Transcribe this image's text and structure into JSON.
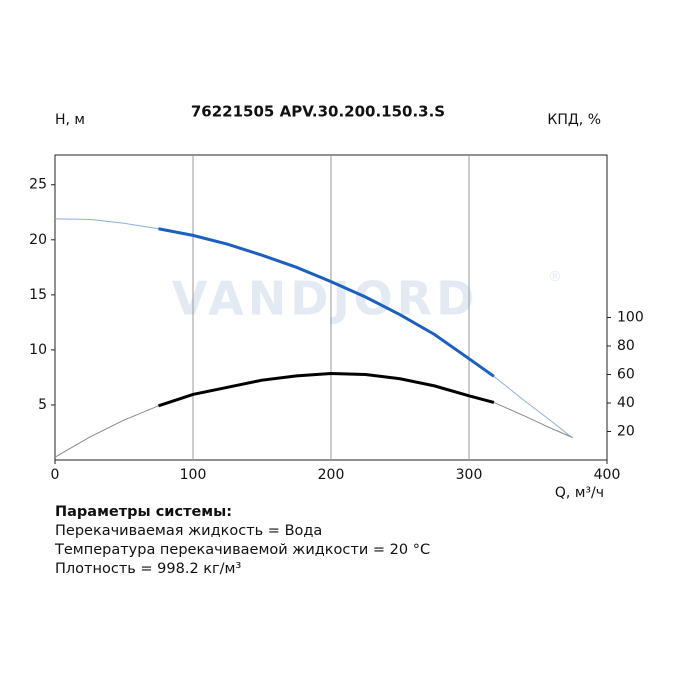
{
  "chart_data": {
    "type": "line",
    "title": "76221505 APV.30.200.150.3.S",
    "y_label": "H, м",
    "y2_label": "КПД, %",
    "x_label": "Q, м³/ч",
    "watermark": "VANDJORD",
    "watermark_mark": "®",
    "x": [
      0,
      25,
      50,
      75,
      100,
      125,
      150,
      175,
      200,
      225,
      250,
      275,
      300,
      318,
      340,
      360,
      375
    ],
    "work_range": [
      75,
      318
    ],
    "series": [
      {
        "color": "#1c5fbf",
        "thin_color": "#8ab0de",
        "values": [
          21.9,
          21.85,
          21.5,
          21.0,
          20.4,
          19.6,
          18.6,
          17.5,
          16.2,
          14.8,
          13.2,
          11.4,
          9.2,
          7.6,
          5.4,
          3.5,
          2.0
        ]
      },
      {
        "color": "#000000",
        "thin_color": "#888888",
        "axis": "y2",
        "values": [
          2,
          16,
          28,
          38,
          46,
          51,
          56,
          59,
          60.7,
          60,
          57,
          52,
          45,
          40.4,
          31,
          22,
          15.8
        ]
      }
    ],
    "xlim": [
      0,
      400
    ],
    "xticks": [
      0,
      100,
      200,
      300,
      400
    ],
    "ylim": [
      0,
      27.7
    ],
    "yticks": [
      5,
      10,
      15,
      20,
      25
    ],
    "y2lim": [
      0,
      214
    ],
    "y2ticks": [
      20,
      40,
      60,
      80,
      100
    ],
    "grid": true,
    "params_title": "Параметры системы:",
    "params": [
      "Перекачиваемая жидкость = Вода",
      "Температура перекачиваемой жидкости = 20 °C",
      "Плотность = 998.2 кг/м³"
    ]
  }
}
